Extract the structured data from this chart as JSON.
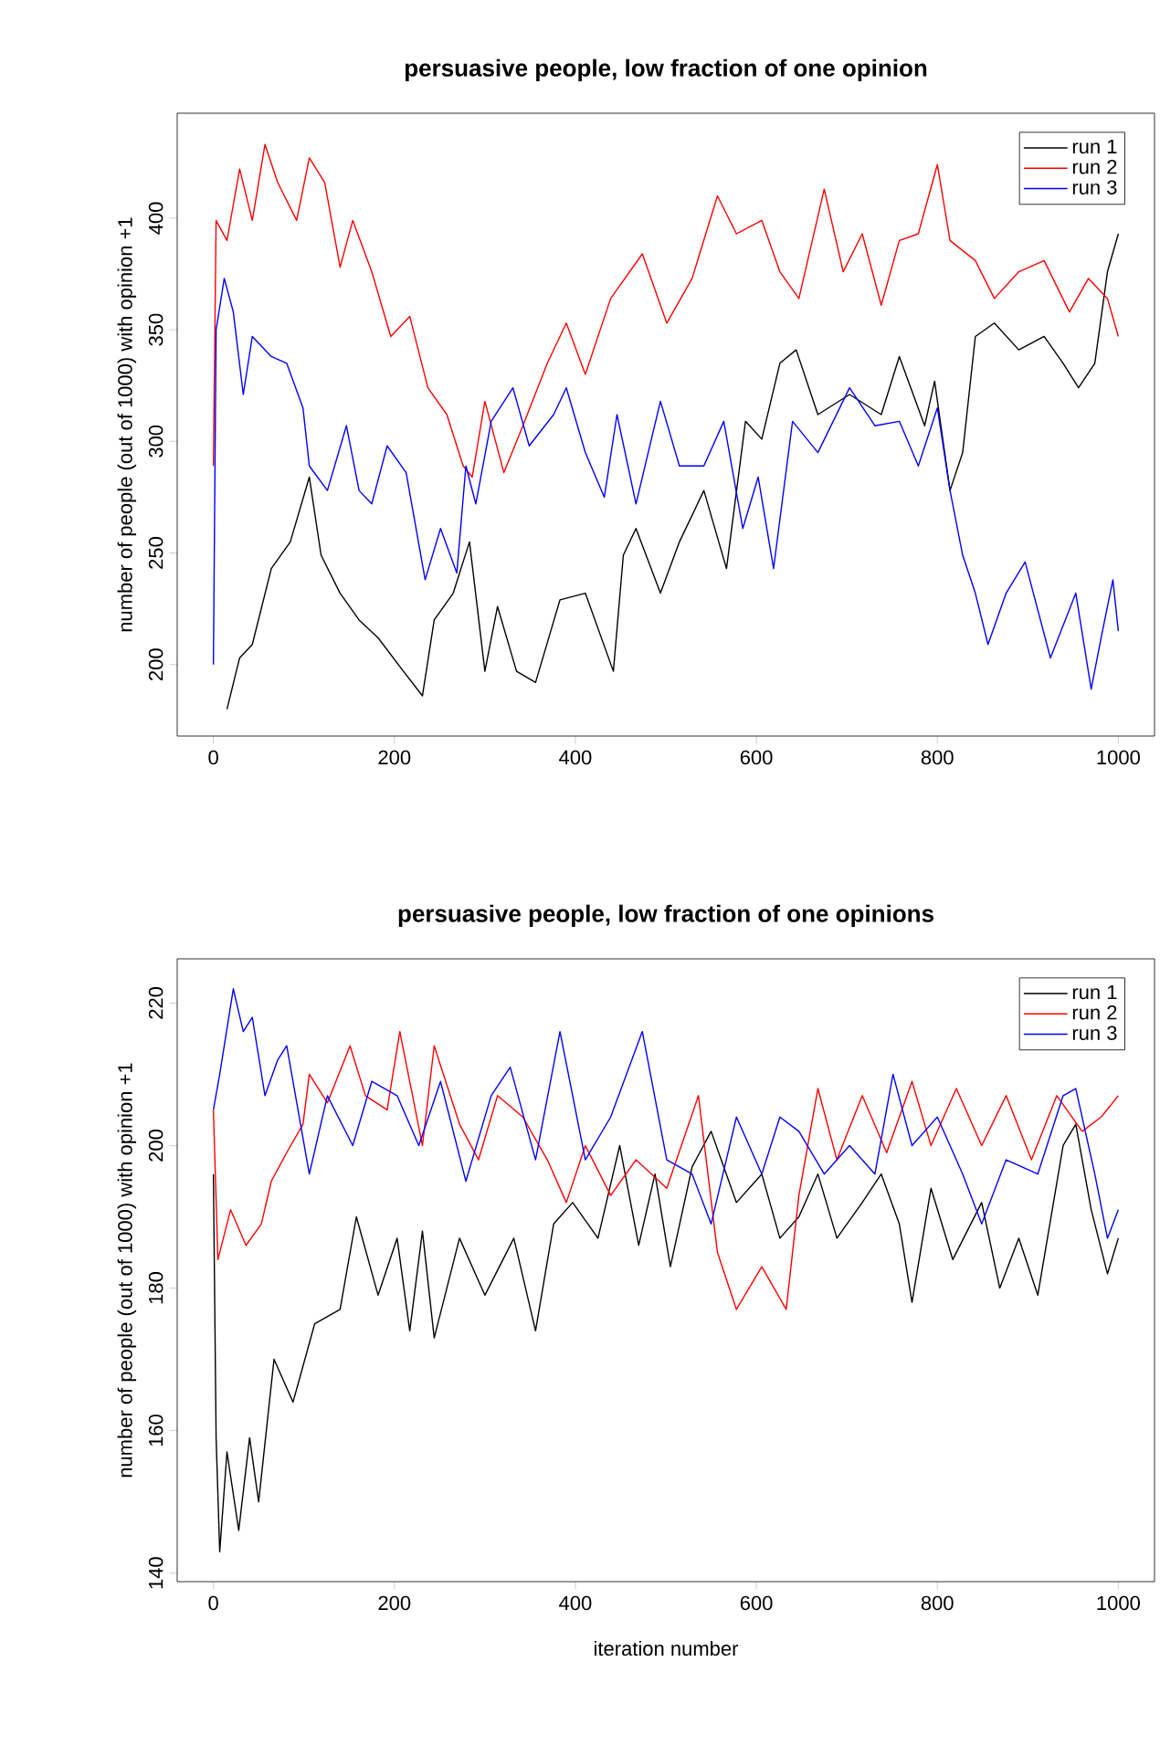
{
  "chart_data": [
    {
      "type": "line",
      "title": "persuasive people, low fraction of one opinion",
      "ylabel": "number of people (out of 1000) with opinion +1",
      "xlim": [
        -40,
        1040
      ],
      "ylim": [
        168,
        447
      ],
      "xticks": [
        0,
        200,
        400,
        600,
        800,
        1000
      ],
      "yticks": [
        200,
        250,
        300,
        350,
        400
      ],
      "legend": "top right",
      "series": [
        {
          "name": "run 1",
          "color": "#000000",
          "x": [
            15,
            29,
            43,
            64,
            85,
            106,
            119,
            140,
            161,
            182,
            210,
            231,
            244,
            265,
            283,
            300,
            314,
            335,
            356,
            383,
            411,
            442,
            453,
            467,
            494,
            515,
            542,
            567,
            588,
            606,
            626,
            644,
            668,
            703,
            738,
            758,
            786,
            797,
            814,
            828,
            842,
            863,
            890,
            918,
            939,
            956,
            974,
            988,
            1000
          ],
          "values": [
            180,
            203,
            209,
            243,
            255,
            284,
            249,
            232,
            220,
            212,
            197,
            186,
            220,
            232,
            255,
            197,
            226,
            197,
            192,
            229,
            232,
            197,
            249,
            261,
            232,
            255,
            278,
            243,
            309,
            301,
            335,
            341,
            312,
            321,
            312,
            338,
            307,
            327,
            278,
            295,
            347,
            353,
            341,
            347,
            335,
            324,
            335,
            376,
            393
          ]
        },
        {
          "name": "run 2",
          "color": "#ff0000",
          "x": [
            0,
            3,
            15,
            29,
            43,
            57,
            71,
            92,
            106,
            123,
            140,
            154,
            175,
            196,
            217,
            237,
            258,
            276,
            286,
            300,
            321,
            342,
            369,
            390,
            411,
            439,
            474,
            501,
            529,
            557,
            578,
            606,
            626,
            647,
            675,
            696,
            717,
            738,
            758,
            779,
            800,
            814,
            842,
            863,
            890,
            918,
            946,
            967,
            988,
            1000
          ],
          "values": [
            289,
            399,
            390,
            422,
            399,
            433,
            416,
            399,
            427,
            416,
            378,
            399,
            376,
            347,
            356,
            324,
            312,
            289,
            284,
            318,
            286,
            307,
            335,
            353,
            330,
            364,
            384,
            353,
            373,
            410,
            393,
            399,
            376,
            364,
            413,
            376,
            393,
            361,
            390,
            393,
            424,
            390,
            381,
            364,
            376,
            381,
            358,
            373,
            364,
            347
          ]
        },
        {
          "name": "run 3",
          "color": "#0000ff",
          "x": [
            0,
            3,
            12,
            22,
            33,
            43,
            64,
            81,
            99,
            106,
            126,
            147,
            161,
            175,
            192,
            213,
            234,
            251,
            269,
            279,
            290,
            307,
            331,
            349,
            376,
            390,
            411,
            432,
            446,
            467,
            494,
            515,
            542,
            564,
            585,
            602,
            619,
            640,
            668,
            703,
            731,
            758,
            779,
            800,
            814,
            828,
            842,
            856,
            876,
            897,
            925,
            953,
            970,
            981,
            994,
            1000
          ],
          "values": [
            200,
            350,
            373,
            358,
            321,
            347,
            338,
            335,
            315,
            289,
            278,
            307,
            278,
            272,
            298,
            286,
            238,
            261,
            241,
            289,
            272,
            309,
            324,
            298,
            312,
            324,
            295,
            275,
            312,
            272,
            318,
            289,
            289,
            309,
            261,
            284,
            243,
            309,
            295,
            324,
            307,
            309,
            289,
            315,
            278,
            249,
            232,
            209,
            232,
            246,
            203,
            232,
            189,
            212,
            238,
            215
          ]
        }
      ]
    },
    {
      "type": "line",
      "title": "persuasive people, low fraction of one opinions",
      "xlabel": "iteration number",
      "ylabel": "number of people (out of 1000) with opinion +1",
      "xlim": [
        -40,
        1040
      ],
      "ylim": [
        138.8,
        226.2
      ],
      "xticks": [
        0,
        200,
        400,
        600,
        800,
        1000
      ],
      "yticks": [
        140,
        160,
        180,
        200,
        220
      ],
      "legend": "top right",
      "series": [
        {
          "name": "run 1",
          "color": "#000000",
          "x": [
            0,
            3,
            7,
            15,
            28,
            40,
            50,
            67,
            88,
            112,
            140,
            158,
            182,
            203,
            217,
            231,
            244,
            272,
            300,
            332,
            356,
            376,
            397,
            425,
            449,
            470,
            488,
            505,
            529,
            550,
            578,
            606,
            626,
            647,
            668,
            689,
            717,
            738,
            758,
            772,
            793,
            817,
            849,
            869,
            890,
            911,
            939,
            953,
            970,
            988,
            1000
          ],
          "values": [
            196,
            159,
            143,
            157,
            146,
            159,
            150,
            170,
            164,
            175,
            177,
            190,
            179,
            187,
            174,
            188,
            173,
            187,
            179,
            187,
            174,
            189,
            192,
            187,
            200,
            186,
            196,
            183,
            197,
            202,
            192,
            196,
            187,
            190,
            196,
            187,
            192,
            196,
            189,
            178,
            194,
            184,
            192,
            180,
            187,
            179,
            200,
            203,
            191,
            182,
            187
          ]
        },
        {
          "name": "run 2",
          "color": "#ff0000",
          "x": [
            0,
            5,
            19,
            36,
            53,
            64,
            81,
            99,
            106,
            126,
            151,
            168,
            192,
            206,
            231,
            244,
            272,
            293,
            314,
            342,
            369,
            390,
            411,
            439,
            467,
            501,
            536,
            557,
            578,
            606,
            633,
            647,
            668,
            689,
            717,
            744,
            772,
            793,
            821,
            849,
            876,
            904,
            932,
            960,
            981,
            1000
          ],
          "values": [
            205,
            184,
            191,
            186,
            189,
            195,
            199,
            203,
            210,
            206,
            214,
            207,
            205,
            216,
            200,
            214,
            203,
            198,
            207,
            204,
            198,
            192,
            200,
            193,
            198,
            194,
            207,
            185,
            177,
            183,
            177,
            193,
            208,
            198,
            207,
            199,
            209,
            200,
            208,
            200,
            207,
            198,
            207,
            202,
            204,
            207
          ]
        },
        {
          "name": "run 3",
          "color": "#0000ff",
          "x": [
            0,
            7,
            22,
            33,
            43,
            57,
            71,
            81,
            106,
            126,
            154,
            175,
            203,
            227,
            251,
            279,
            307,
            328,
            356,
            383,
            411,
            439,
            474,
            501,
            529,
            550,
            578,
            606,
            626,
            647,
            675,
            703,
            731,
            751,
            772,
            800,
            828,
            849,
            876,
            911,
            939,
            953,
            974,
            988,
            1000
          ],
          "values": [
            205,
            210,
            222,
            216,
            218,
            207,
            212,
            214,
            196,
            207,
            200,
            209,
            207,
            200,
            209,
            195,
            207,
            211,
            198,
            216,
            198,
            204,
            216,
            198,
            196,
            189,
            204,
            196,
            204,
            202,
            196,
            200,
            196,
            210,
            200,
            204,
            196,
            189,
            198,
            196,
            207,
            208,
            196,
            187,
            191
          ]
        }
      ]
    }
  ]
}
